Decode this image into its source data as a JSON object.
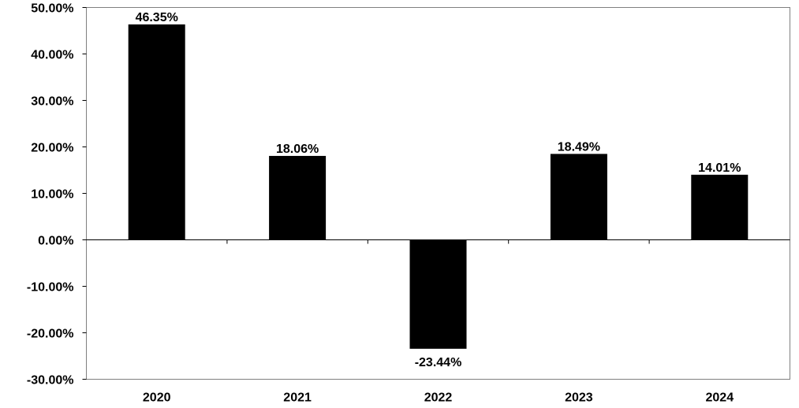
{
  "chart_data": {
    "type": "bar",
    "categories": [
      "2020",
      "2021",
      "2022",
      "2023",
      "2024"
    ],
    "values": [
      46.35,
      18.06,
      -23.44,
      18.49,
      14.01
    ],
    "data_labels": [
      "46.35%",
      "18.06%",
      "-23.44%",
      "18.49%",
      "14.01%"
    ],
    "y_ticks": [
      50,
      40,
      30,
      20,
      10,
      0,
      -10,
      -20,
      -30
    ],
    "y_tick_labels": [
      "50.00%",
      "40.00%",
      "30.00%",
      "20.00%",
      "10.00%",
      "0.00%",
      "-10.00%",
      "-20.00%",
      "-30.00%"
    ],
    "ylim": [
      -30,
      50
    ],
    "grid": false,
    "legend": "none",
    "title": "",
    "xlabel": "",
    "ylabel": "",
    "bar_color": "#000000"
  }
}
